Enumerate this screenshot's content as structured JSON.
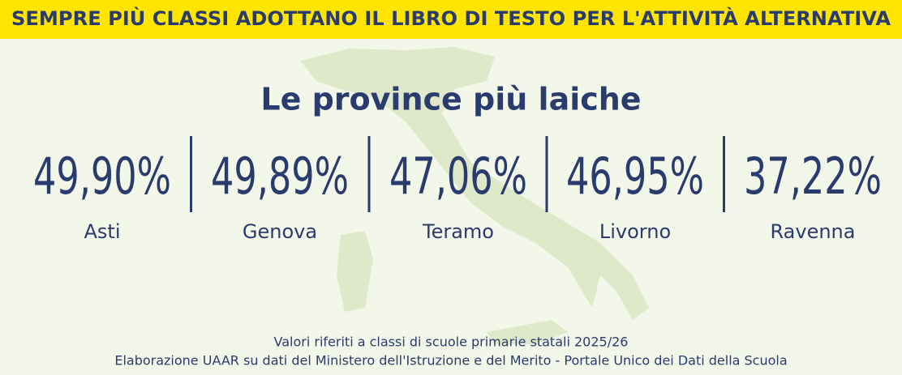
{
  "header": {
    "title": "SEMPRE PIÙ CLASSI ADOTTANO IL LIBRO DI TESTO PER L'ATTIVITÀ ALTERNATIVA"
  },
  "subtitle": "Le province più laiche",
  "stats": [
    {
      "value": "49,90%",
      "name": "Asti"
    },
    {
      "value": "49,89%",
      "name": "Genova"
    },
    {
      "value": "47,06%",
      "name": "Teramo"
    },
    {
      "value": "46,95%",
      "name": "Livorno"
    },
    {
      "value": "37,22%",
      "name": "Ravenna"
    }
  ],
  "notes": [
    "Valori riferiti a classi di scuole primarie statali 2025/26",
    "Elaborazione UAAR su dati del Ministero dell'Istruzione e del Merito - Portale Unico dei Dati della Scuola"
  ]
}
